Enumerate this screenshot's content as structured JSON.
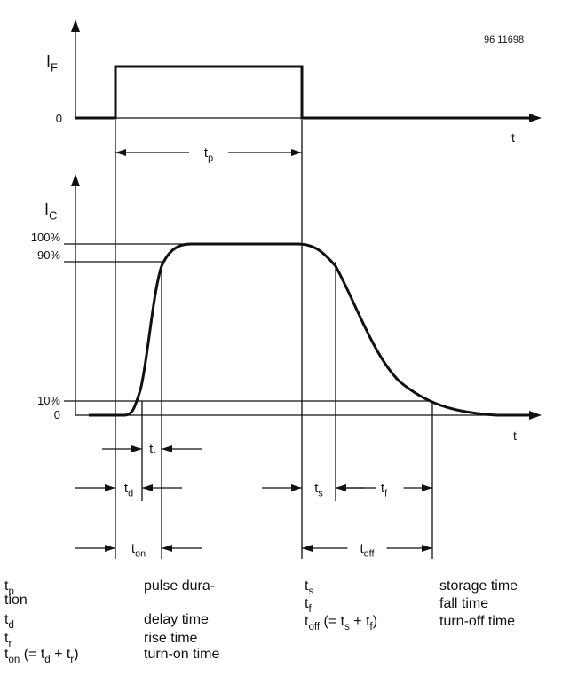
{
  "figure_code": "96 11698",
  "top_axis": {
    "label": [
      "I",
      "F"
    ],
    "origin": "0",
    "time": "t"
  },
  "bottom_axis": {
    "label": [
      "I",
      "C"
    ],
    "levels": [
      "100%",
      "90%",
      "10%"
    ],
    "origin": "0",
    "time": "t"
  },
  "intervals": {
    "tp": [
      "t",
      "p"
    ],
    "tr": [
      "t",
      "r"
    ],
    "td": [
      "t",
      "d"
    ],
    "ton": [
      "t",
      "on"
    ],
    "ts": [
      "t",
      "s"
    ],
    "tf": [
      "t",
      "f"
    ],
    "toff": [
      "t",
      "off"
    ]
  },
  "legend": {
    "left": [
      {
        "symbol": [
          "t",
          "p"
        ],
        "description": "pulse dura-"
      },
      {
        "symbol": [
          "tion"
        ],
        "description": ""
      },
      {
        "symbol": [
          "t",
          "d"
        ],
        "description": "delay time"
      },
      {
        "symbol": [
          "t",
          "r"
        ],
        "description": "rise time"
      },
      {
        "symbol": [
          "t",
          "on",
          " (= t",
          "d",
          " + t",
          "r",
          ")"
        ],
        "description": "turn-on time"
      }
    ],
    "right": [
      {
        "symbol": [
          "t",
          "s"
        ],
        "description": "storage time"
      },
      {
        "symbol": [
          "t",
          "f"
        ],
        "description": "fall time"
      },
      {
        "symbol": [
          "t",
          "off",
          " (= t",
          "s",
          " + t",
          "f",
          ")"
        ],
        "description": "turn-off time"
      }
    ]
  }
}
